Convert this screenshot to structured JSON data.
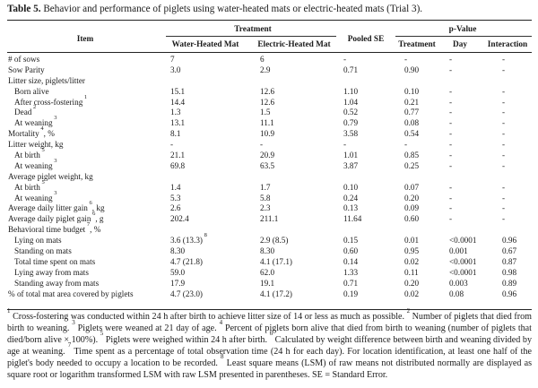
{
  "caption": {
    "label": "Table 5.",
    "text": " Behavior and performance of piglets using water-heated mats or electric-heated mats (Trial 3)."
  },
  "header": {
    "item": "Item",
    "treatment_group": "Treatment",
    "water": "Water-Heated Mat",
    "electric": "Electric-Heated Mat",
    "pooled_se": "Pooled SE",
    "pvalue_group": "p-Value",
    "treatment": "Treatment",
    "day": "Day",
    "interaction": "Interaction"
  },
  "rows": [
    {
      "item": "# of sows",
      "sup": "",
      "indent": false,
      "water": "7",
      "electric": "6",
      "se": "-",
      "trt": "-",
      "day": "-",
      "inter": "-"
    },
    {
      "item": "Sow Parity",
      "sup": "",
      "indent": false,
      "water": "3.0",
      "electric": "2.9",
      "se": "0.71",
      "trt": "0.90",
      "day": "-",
      "inter": "-"
    },
    {
      "item": "Litter size, piglets/litter",
      "sup": "",
      "indent": false,
      "water": "",
      "electric": "",
      "se": "",
      "trt": "",
      "day": "",
      "inter": ""
    },
    {
      "item": "Born alive",
      "sup": "",
      "indent": true,
      "water": "15.1",
      "electric": "12.6",
      "se": "1.10",
      "trt": "0.10",
      "day": "-",
      "inter": "-"
    },
    {
      "item": "After cross-fostering",
      "sup": "1",
      "indent": true,
      "water": "14.4",
      "electric": "12.6",
      "se": "1.04",
      "trt": "0.21",
      "day": "-",
      "inter": "-"
    },
    {
      "item": "Dead",
      "sup": "2",
      "indent": true,
      "water": "1.3",
      "electric": "1.5",
      "se": "0.52",
      "trt": "0.77",
      "day": "-",
      "inter": "-"
    },
    {
      "item": "At weaning",
      "sup": "3",
      "indent": true,
      "water": "13.1",
      "electric": "11.1",
      "se": "0.79",
      "trt": "0.08",
      "day": "-",
      "inter": "-"
    },
    {
      "item": "Mortality",
      "sup": "4",
      "suffix": ", %",
      "indent": false,
      "water": "8.1",
      "electric": "10.9",
      "se": "3.58",
      "trt": "0.54",
      "day": "-",
      "inter": "-"
    },
    {
      "item": "Litter weight, kg",
      "sup": "",
      "indent": false,
      "water": "-",
      "electric": "-",
      "se": "-",
      "trt": "-",
      "day": "-",
      "inter": "-"
    },
    {
      "item": "At birth",
      "sup": "5",
      "indent": true,
      "water": "21.1",
      "electric": "20.9",
      "se": "1.01",
      "trt": "0.85",
      "day": "-",
      "inter": "-"
    },
    {
      "item": "At weaning",
      "sup": "3",
      "indent": true,
      "water": "69.8",
      "electric": "63.5",
      "se": "3.87",
      "trt": "0.25",
      "day": "-",
      "inter": "-"
    },
    {
      "item": "Average piglet weight, kg",
      "sup": "",
      "indent": false,
      "water": "",
      "electric": "",
      "se": "",
      "trt": "",
      "day": "",
      "inter": ""
    },
    {
      "item": "At birth",
      "sup": "5",
      "indent": true,
      "water": "1.4",
      "electric": "1.7",
      "se": "0.10",
      "trt": "0.07",
      "day": "-",
      "inter": "-"
    },
    {
      "item": "At weaning",
      "sup": "3",
      "indent": true,
      "water": "5.3",
      "electric": "5.8",
      "se": "0.24",
      "trt": "0.20",
      "day": "-",
      "inter": "-"
    },
    {
      "item": "Average daily litter gain",
      "sup": "6",
      "suffix": ", kg",
      "indent": false,
      "water": "2.6",
      "electric": "2.3",
      "se": "0.13",
      "trt": "0.09",
      "day": "-",
      "inter": "-"
    },
    {
      "item": "Average daily piglet gain",
      "sup": "6",
      "suffix": ", g",
      "indent": false,
      "water": "202.4",
      "electric": "211.1",
      "se": "11.64",
      "trt": "0.60",
      "day": "-",
      "inter": "-"
    },
    {
      "item": "Behavioral time budget",
      "sup": "7",
      "suffix": ", %",
      "indent": false,
      "water": "",
      "electric": "",
      "se": "",
      "trt": "",
      "day": "",
      "inter": ""
    },
    {
      "item": "Lying on mats",
      "sup": "",
      "indent": true,
      "water": "3.6 (13.3)",
      "water_sup": "8",
      "electric": "2.9 (8.5)",
      "se": "0.15",
      "trt": "0.01",
      "day": "<0.0001",
      "inter": "0.96"
    },
    {
      "item": "Standing on mats",
      "sup": "",
      "indent": true,
      "water": "8.30",
      "electric": "8.30",
      "se": "0.60",
      "trt": "0.95",
      "day": "0.001",
      "inter": "0.67"
    },
    {
      "item": "Total time spent on mats",
      "sup": "",
      "indent": true,
      "water": "4.7 (21.8)",
      "electric": "4.1 (17.1)",
      "se": "0.14",
      "trt": "0.02",
      "day": "<0.0001",
      "inter": "0.87"
    },
    {
      "item": "Lying away from mats",
      "sup": "",
      "indent": true,
      "water": "59.0",
      "electric": "62.0",
      "se": "1.33",
      "trt": "0.11",
      "day": "<0.0001",
      "inter": "0.98"
    },
    {
      "item": "Standing away from mats",
      "sup": "",
      "indent": true,
      "water": "17.9",
      "electric": "19.1",
      "se": "0.71",
      "trt": "0.20",
      "day": "0.003",
      "inter": "0.89"
    },
    {
      "item": "% of total mat area covered by piglets",
      "sup": "",
      "indent": false,
      "water": "4.7 (23.0)",
      "electric": "4.1 (17.2)",
      "se": "0.19",
      "trt": "0.02",
      "day": "0.08",
      "inter": "0.96"
    }
  ],
  "footnotes": [
    {
      "n": "1",
      "t": " Cross-fostering was conducted within 24 h after birth to achieve litter size of 14 or less as much as possible. "
    },
    {
      "n": "2",
      "t": " Number of piglets that died from birth to weaning. "
    },
    {
      "n": "3",
      "t": " Piglets were weaned at 21 day of age. "
    },
    {
      "n": "4",
      "t": " Percent of piglets born alive that died from birth to weaning (number of piglets that died/born alive × 100%). "
    },
    {
      "n": "5",
      "t": " Piglets were weighed within 24 h after birth. "
    },
    {
      "n": "6",
      "t": " Calculated by weight difference between birth and weaning divided by age at weaning. "
    },
    {
      "n": "7",
      "t": " Time spent as a percentage of total observation time (24 h for each day). For location identification, at least one half of the piglet's body needed to occupy a location to be recorded. "
    },
    {
      "n": "8",
      "t": " Least square means (LSM) of raw means not distributed normally are displayed as square root or logarithm transformed LSM with raw LSM presented in parentheses. SE = Standard Error."
    }
  ]
}
